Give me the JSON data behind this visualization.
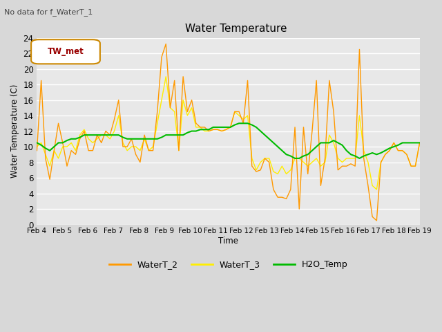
{
  "title": "Water Temperature",
  "subtitle": "No data for f_WaterT_1",
  "ylabel": "Water Temperature (C)",
  "xlabel": "Time",
  "legend_label": "TW_met",
  "ylim": [
    0,
    24
  ],
  "xlim": [
    0,
    360
  ],
  "tick_labels": [
    "Feb 4",
    "Feb 5",
    "Feb 6",
    "Feb 7",
    "Feb 8",
    "Feb 9",
    "Feb 10",
    "Feb 11",
    "Feb 12",
    "Feb 13",
    "Feb 14",
    "Feb 15",
    "Feb 16",
    "Feb 17",
    "Feb 18",
    "Feb 19"
  ],
  "tick_positions": [
    0,
    24,
    48,
    72,
    96,
    120,
    144,
    168,
    192,
    216,
    240,
    264,
    288,
    312,
    336,
    360
  ],
  "bg_color": "#e8e8e8",
  "grid_color": "#ffffff",
  "waterT2_color": "#ff9900",
  "waterT3_color": "#ffee00",
  "h2otemp_color": "#00bb00",
  "waterT2": [
    9.5,
    18.5,
    8.5,
    5.8,
    9.5,
    13.0,
    10.5,
    7.5,
    9.5,
    9.0,
    11.0,
    12.0,
    9.5,
    9.5,
    11.5,
    10.5,
    12.0,
    11.5,
    13.5,
    16.0,
    10.0,
    10.0,
    11.0,
    9.0,
    8.0,
    11.5,
    9.5,
    9.5,
    14.5,
    21.5,
    23.2,
    15.0,
    18.5,
    9.5,
    19.0,
    14.5,
    16.0,
    13.0,
    12.5,
    12.5,
    12.0,
    12.2,
    12.2,
    12.0,
    12.2,
    12.5,
    14.5,
    14.5,
    13.0,
    18.5,
    7.5,
    6.8,
    7.0,
    8.5,
    8.0,
    4.5,
    3.5,
    3.5,
    3.3,
    4.5,
    12.5,
    2.0,
    12.5,
    6.5,
    12.0,
    18.5,
    5.0,
    8.5,
    18.5,
    14.5,
    7.0,
    7.5,
    7.5,
    7.8,
    7.5,
    22.5,
    8.5,
    5.0,
    1.0,
    0.5,
    8.0,
    9.0,
    9.5,
    10.5,
    9.5,
    9.5,
    9.0,
    7.5,
    7.5,
    10.5
  ],
  "waterT3": [
    10.0,
    10.5,
    9.0,
    7.5,
    9.5,
    8.5,
    10.0,
    10.0,
    10.5,
    9.5,
    11.5,
    12.2,
    11.0,
    10.5,
    11.0,
    11.5,
    11.5,
    11.0,
    12.0,
    14.0,
    10.5,
    9.5,
    10.0,
    10.0,
    9.5,
    11.0,
    9.5,
    10.0,
    13.0,
    16.0,
    19.0,
    15.0,
    14.5,
    9.5,
    16.0,
    14.0,
    15.0,
    12.5,
    12.5,
    12.0,
    12.0,
    12.2,
    12.2,
    12.0,
    12.2,
    12.5,
    14.5,
    14.0,
    13.5,
    14.0,
    8.5,
    7.0,
    8.0,
    8.5,
    8.5,
    6.8,
    6.5,
    7.5,
    6.5,
    7.0,
    8.5,
    8.5,
    8.0,
    7.5,
    8.0,
    8.5,
    7.5,
    8.0,
    11.5,
    10.5,
    8.5,
    8.0,
    8.5,
    8.5,
    8.5,
    14.0,
    9.5,
    8.0,
    5.0,
    4.5,
    8.0,
    9.0,
    9.5,
    10.5,
    9.5,
    9.5,
    9.0,
    7.5,
    7.5,
    10.5
  ],
  "h2otemp": [
    10.5,
    10.2,
    9.8,
    9.5,
    10.0,
    10.5,
    10.5,
    10.8,
    11.0,
    11.0,
    11.2,
    11.5,
    11.5,
    11.5,
    11.5,
    11.5,
    11.5,
    11.5,
    11.5,
    11.5,
    11.2,
    11.0,
    11.0,
    11.0,
    11.0,
    11.0,
    11.0,
    11.0,
    11.0,
    11.2,
    11.5,
    11.5,
    11.5,
    11.5,
    11.5,
    11.8,
    12.0,
    12.0,
    12.2,
    12.2,
    12.2,
    12.5,
    12.5,
    12.5,
    12.5,
    12.5,
    12.8,
    13.0,
    13.0,
    13.0,
    12.8,
    12.5,
    12.0,
    11.5,
    11.0,
    10.5,
    10.0,
    9.5,
    9.0,
    8.8,
    8.5,
    8.5,
    8.8,
    9.0,
    9.5,
    10.0,
    10.5,
    10.5,
    10.5,
    10.8,
    10.5,
    10.2,
    9.5,
    9.0,
    8.8,
    8.5,
    8.8,
    9.0,
    9.2,
    9.0,
    9.2,
    9.5,
    9.8,
    10.0,
    10.2,
    10.5,
    10.5,
    10.5,
    10.5,
    10.5
  ]
}
